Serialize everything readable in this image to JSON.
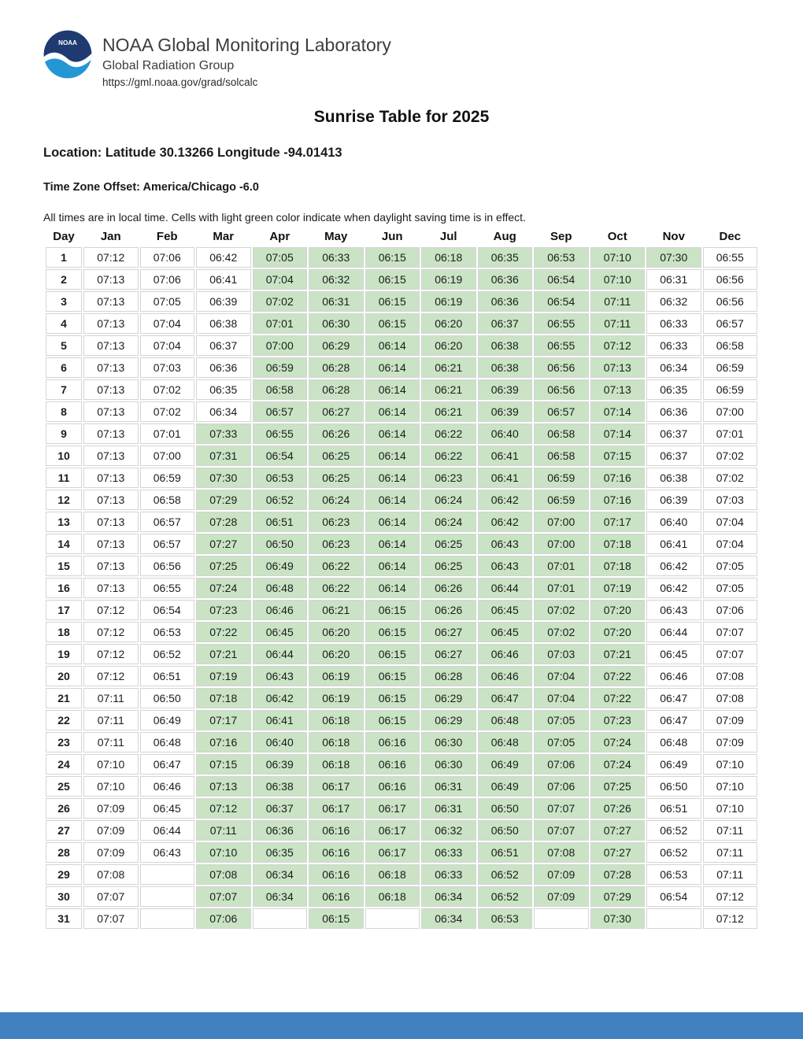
{
  "header": {
    "org": "NOAA Global Monitoring Laboratory",
    "group": "Global Radiation Group",
    "url": "https://gml.noaa.gov/grad/solcalc",
    "logo_text": "NOAA"
  },
  "title": "Sunrise Table for 2025",
  "location_line": "Location: Latitude 30.13266 Longitude -94.01413",
  "timezone_line": "Time Zone Offset: America/Chicago -6.0",
  "note": "All times are in local time. Cells with light green color indicate when daylight saving time is in effect.",
  "colors": {
    "dst_green": "#c9e3c4",
    "cell_border": "#d4d4d4",
    "footer_blue": "#4181c1",
    "logo_dark_blue": "#1e3a70",
    "logo_light_blue": "#2397d4"
  },
  "table": {
    "columns": [
      "Day",
      "Jan",
      "Feb",
      "Mar",
      "Apr",
      "May",
      "Jun",
      "Jul",
      "Aug",
      "Sep",
      "Oct",
      "Nov",
      "Dec"
    ],
    "dst_ranges": {
      "Mar": [
        9,
        31
      ],
      "Apr": [
        1,
        30
      ],
      "May": [
        1,
        31
      ],
      "Jun": [
        1,
        30
      ],
      "Jul": [
        1,
        31
      ],
      "Aug": [
        1,
        31
      ],
      "Sep": [
        1,
        30
      ],
      "Oct": [
        1,
        31
      ],
      "Nov": [
        1,
        1
      ]
    },
    "rows": [
      [
        1,
        "07:12",
        "07:06",
        "06:42",
        "07:05",
        "06:33",
        "06:15",
        "06:18",
        "06:35",
        "06:53",
        "07:10",
        "07:30",
        "06:55"
      ],
      [
        2,
        "07:13",
        "07:06",
        "06:41",
        "07:04",
        "06:32",
        "06:15",
        "06:19",
        "06:36",
        "06:54",
        "07:10",
        "06:31",
        "06:56"
      ],
      [
        3,
        "07:13",
        "07:05",
        "06:39",
        "07:02",
        "06:31",
        "06:15",
        "06:19",
        "06:36",
        "06:54",
        "07:11",
        "06:32",
        "06:56"
      ],
      [
        4,
        "07:13",
        "07:04",
        "06:38",
        "07:01",
        "06:30",
        "06:15",
        "06:20",
        "06:37",
        "06:55",
        "07:11",
        "06:33",
        "06:57"
      ],
      [
        5,
        "07:13",
        "07:04",
        "06:37",
        "07:00",
        "06:29",
        "06:14",
        "06:20",
        "06:38",
        "06:55",
        "07:12",
        "06:33",
        "06:58"
      ],
      [
        6,
        "07:13",
        "07:03",
        "06:36",
        "06:59",
        "06:28",
        "06:14",
        "06:21",
        "06:38",
        "06:56",
        "07:13",
        "06:34",
        "06:59"
      ],
      [
        7,
        "07:13",
        "07:02",
        "06:35",
        "06:58",
        "06:28",
        "06:14",
        "06:21",
        "06:39",
        "06:56",
        "07:13",
        "06:35",
        "06:59"
      ],
      [
        8,
        "07:13",
        "07:02",
        "06:34",
        "06:57",
        "06:27",
        "06:14",
        "06:21",
        "06:39",
        "06:57",
        "07:14",
        "06:36",
        "07:00"
      ],
      [
        9,
        "07:13",
        "07:01",
        "07:33",
        "06:55",
        "06:26",
        "06:14",
        "06:22",
        "06:40",
        "06:58",
        "07:14",
        "06:37",
        "07:01"
      ],
      [
        10,
        "07:13",
        "07:00",
        "07:31",
        "06:54",
        "06:25",
        "06:14",
        "06:22",
        "06:41",
        "06:58",
        "07:15",
        "06:37",
        "07:02"
      ],
      [
        11,
        "07:13",
        "06:59",
        "07:30",
        "06:53",
        "06:25",
        "06:14",
        "06:23",
        "06:41",
        "06:59",
        "07:16",
        "06:38",
        "07:02"
      ],
      [
        12,
        "07:13",
        "06:58",
        "07:29",
        "06:52",
        "06:24",
        "06:14",
        "06:24",
        "06:42",
        "06:59",
        "07:16",
        "06:39",
        "07:03"
      ],
      [
        13,
        "07:13",
        "06:57",
        "07:28",
        "06:51",
        "06:23",
        "06:14",
        "06:24",
        "06:42",
        "07:00",
        "07:17",
        "06:40",
        "07:04"
      ],
      [
        14,
        "07:13",
        "06:57",
        "07:27",
        "06:50",
        "06:23",
        "06:14",
        "06:25",
        "06:43",
        "07:00",
        "07:18",
        "06:41",
        "07:04"
      ],
      [
        15,
        "07:13",
        "06:56",
        "07:25",
        "06:49",
        "06:22",
        "06:14",
        "06:25",
        "06:43",
        "07:01",
        "07:18",
        "06:42",
        "07:05"
      ],
      [
        16,
        "07:13",
        "06:55",
        "07:24",
        "06:48",
        "06:22",
        "06:14",
        "06:26",
        "06:44",
        "07:01",
        "07:19",
        "06:42",
        "07:05"
      ],
      [
        17,
        "07:12",
        "06:54",
        "07:23",
        "06:46",
        "06:21",
        "06:15",
        "06:26",
        "06:45",
        "07:02",
        "07:20",
        "06:43",
        "07:06"
      ],
      [
        18,
        "07:12",
        "06:53",
        "07:22",
        "06:45",
        "06:20",
        "06:15",
        "06:27",
        "06:45",
        "07:02",
        "07:20",
        "06:44",
        "07:07"
      ],
      [
        19,
        "07:12",
        "06:52",
        "07:21",
        "06:44",
        "06:20",
        "06:15",
        "06:27",
        "06:46",
        "07:03",
        "07:21",
        "06:45",
        "07:07"
      ],
      [
        20,
        "07:12",
        "06:51",
        "07:19",
        "06:43",
        "06:19",
        "06:15",
        "06:28",
        "06:46",
        "07:04",
        "07:22",
        "06:46",
        "07:08"
      ],
      [
        21,
        "07:11",
        "06:50",
        "07:18",
        "06:42",
        "06:19",
        "06:15",
        "06:29",
        "06:47",
        "07:04",
        "07:22",
        "06:47",
        "07:08"
      ],
      [
        22,
        "07:11",
        "06:49",
        "07:17",
        "06:41",
        "06:18",
        "06:15",
        "06:29",
        "06:48",
        "07:05",
        "07:23",
        "06:47",
        "07:09"
      ],
      [
        23,
        "07:11",
        "06:48",
        "07:16",
        "06:40",
        "06:18",
        "06:16",
        "06:30",
        "06:48",
        "07:05",
        "07:24",
        "06:48",
        "07:09"
      ],
      [
        24,
        "07:10",
        "06:47",
        "07:15",
        "06:39",
        "06:18",
        "06:16",
        "06:30",
        "06:49",
        "07:06",
        "07:24",
        "06:49",
        "07:10"
      ],
      [
        25,
        "07:10",
        "06:46",
        "07:13",
        "06:38",
        "06:17",
        "06:16",
        "06:31",
        "06:49",
        "07:06",
        "07:25",
        "06:50",
        "07:10"
      ],
      [
        26,
        "07:09",
        "06:45",
        "07:12",
        "06:37",
        "06:17",
        "06:17",
        "06:31",
        "06:50",
        "07:07",
        "07:26",
        "06:51",
        "07:10"
      ],
      [
        27,
        "07:09",
        "06:44",
        "07:11",
        "06:36",
        "06:16",
        "06:17",
        "06:32",
        "06:50",
        "07:07",
        "07:27",
        "06:52",
        "07:11"
      ],
      [
        28,
        "07:09",
        "06:43",
        "07:10",
        "06:35",
        "06:16",
        "06:17",
        "06:33",
        "06:51",
        "07:08",
        "07:27",
        "06:52",
        "07:11"
      ],
      [
        29,
        "07:08",
        "",
        "07:08",
        "06:34",
        "06:16",
        "06:18",
        "06:33",
        "06:52",
        "07:09",
        "07:28",
        "06:53",
        "07:11"
      ],
      [
        30,
        "07:07",
        "",
        "07:07",
        "06:34",
        "06:16",
        "06:18",
        "06:34",
        "06:52",
        "07:09",
        "07:29",
        "06:54",
        "07:12"
      ],
      [
        31,
        "07:07",
        "",
        "07:06",
        "",
        "06:15",
        "",
        "06:34",
        "06:53",
        "",
        "07:30",
        "",
        "07:12"
      ]
    ]
  }
}
